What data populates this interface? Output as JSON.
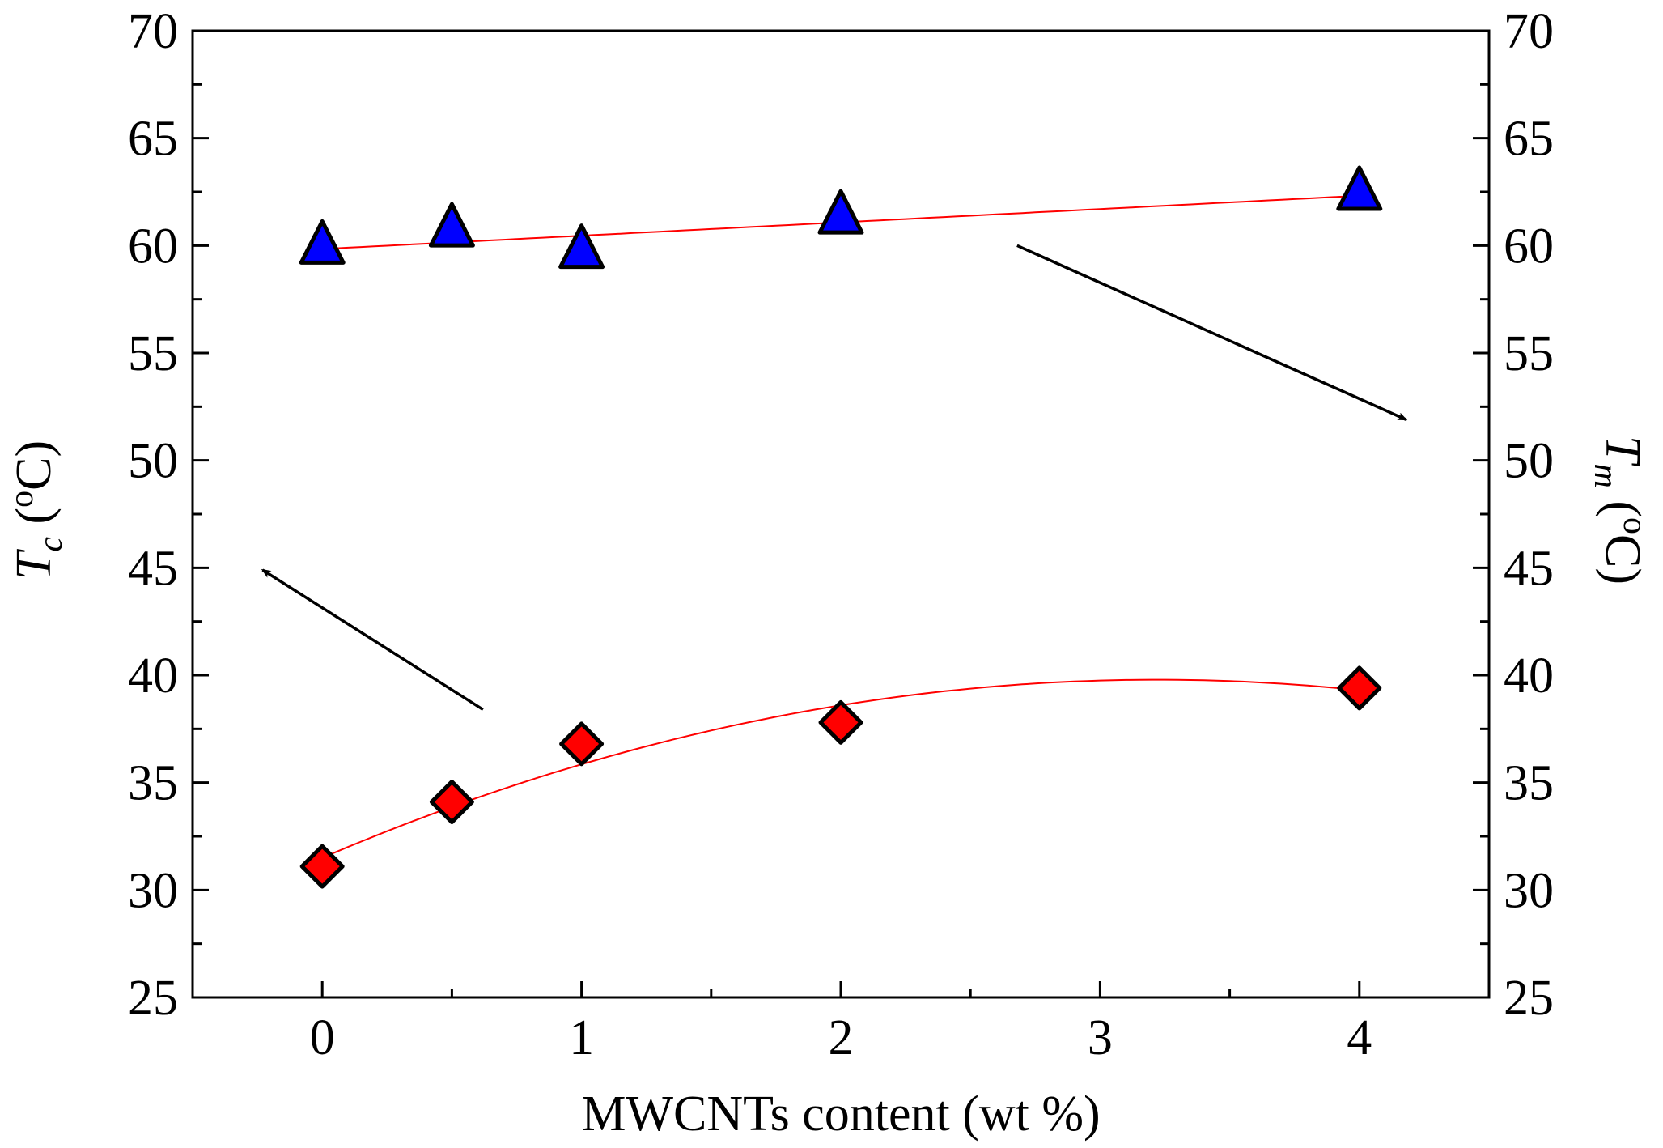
{
  "chart_data": {
    "type": "scatter",
    "xlabel": "MWCNTs content (wt %)",
    "ylabel_left": {
      "symbol": "T",
      "subscript": "c",
      "unit_open": " (",
      "superscript": "o",
      "unit_close": "C)"
    },
    "ylabel_right": {
      "symbol": "T",
      "subscript": "m",
      "unit_open": " (",
      "superscript": "o",
      "unit_close": "C)"
    },
    "xlim": [
      -0.5,
      4.5
    ],
    "ylim": [
      25,
      70
    ],
    "x_ticks": [
      0,
      1,
      2,
      3,
      4
    ],
    "x_tick_labels": [
      "0",
      "1",
      "2",
      "3",
      "4"
    ],
    "x_minor_ticks": [
      -0.5,
      0.5,
      1.5,
      2.5,
      3.5,
      4.5
    ],
    "y_ticks": [
      25,
      30,
      35,
      40,
      45,
      50,
      55,
      60,
      65,
      70
    ],
    "y_tick_labels": [
      "25",
      "30",
      "35",
      "40",
      "45",
      "50",
      "55",
      "60",
      "65",
      "70"
    ],
    "y_minor_ticks": [
      27.5,
      32.5,
      37.5,
      42.5,
      47.5,
      52.5,
      57.5,
      62.5,
      67.5
    ],
    "grid": false,
    "legend": "none",
    "series": [
      {
        "name": "Tc",
        "axis": "left",
        "marker": "diamond",
        "fill": "#ff0000",
        "x": [
          0,
          0.5,
          1,
          2,
          4
        ],
        "y": [
          31.1,
          34.1,
          36.8,
          37.8,
          39.4
        ],
        "fit": {
          "kind": "quadratic",
          "coefficients": [
            31.5,
            5.15,
            -0.8
          ],
          "color": "#ff0000"
        }
      },
      {
        "name": "Tm",
        "axis": "right",
        "marker": "triangle",
        "fill": "#0000ff",
        "x": [
          0,
          0.5,
          1,
          2,
          4
        ],
        "y": [
          60.0,
          60.8,
          59.8,
          61.4,
          62.5
        ],
        "fit": {
          "kind": "linear",
          "coefficients": [
            59.84,
            0.62
          ],
          "color": "#ff0000"
        }
      }
    ],
    "annotations": [
      {
        "name": "arrow-to-left-axis",
        "from": [
          0.62,
          38.4
        ],
        "to": [
          -0.23,
          44.9
        ]
      },
      {
        "name": "arrow-to-right-axis",
        "from": [
          2.68,
          60.0
        ],
        "to": [
          4.18,
          51.9
        ]
      }
    ]
  }
}
